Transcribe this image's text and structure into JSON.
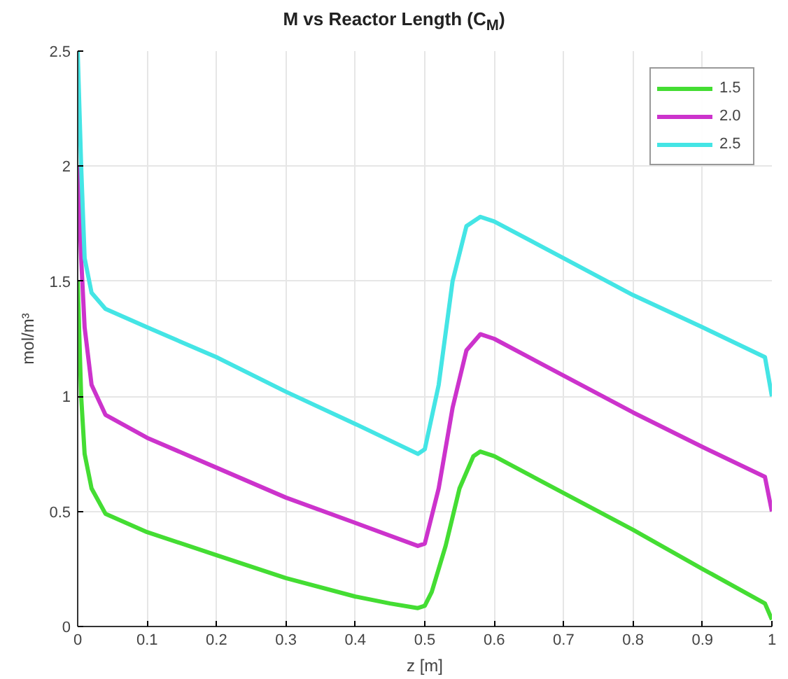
{
  "chart_data": {
    "type": "line",
    "title": "M vs Reactor Length (C$_{M}$)",
    "xlabel": "z [m]",
    "ylabel": "mol/m³",
    "xlim": [
      0,
      1
    ],
    "ylim": [
      0,
      2.5
    ],
    "xticks": [
      0,
      0.1,
      0.2,
      0.3,
      0.4,
      0.5,
      0.6,
      0.7,
      0.8,
      0.9,
      1
    ],
    "yticks": [
      0,
      0.5,
      1,
      1.5,
      2,
      2.5
    ],
    "grid": true,
    "legend": "top right",
    "line_style": "solid",
    "series": [
      {
        "name": "1.5",
        "color": "#44dd33",
        "x": [
          0,
          0.005,
          0.01,
          0.02,
          0.04,
          0.1,
          0.2,
          0.3,
          0.4,
          0.45,
          0.49,
          0.5,
          0.51,
          0.53,
          0.55,
          0.57,
          0.58,
          0.6,
          0.7,
          0.8,
          0.9,
          0.99,
          1.0
        ],
        "values": [
          1.5,
          1.0,
          0.75,
          0.6,
          0.49,
          0.41,
          0.31,
          0.21,
          0.13,
          0.1,
          0.08,
          0.09,
          0.15,
          0.35,
          0.6,
          0.74,
          0.76,
          0.74,
          0.58,
          0.42,
          0.25,
          0.1,
          0.03
        ]
      },
      {
        "name": "2.0",
        "color": "#cc33cc",
        "x": [
          0,
          0.005,
          0.01,
          0.02,
          0.04,
          0.1,
          0.2,
          0.3,
          0.4,
          0.49,
          0.5,
          0.52,
          0.54,
          0.56,
          0.58,
          0.6,
          0.7,
          0.8,
          0.9,
          0.99,
          1.0
        ],
        "values": [
          2.0,
          1.6,
          1.3,
          1.05,
          0.92,
          0.82,
          0.69,
          0.56,
          0.45,
          0.35,
          0.36,
          0.6,
          0.95,
          1.2,
          1.27,
          1.25,
          1.09,
          0.93,
          0.78,
          0.65,
          0.5
        ]
      },
      {
        "name": "2.5",
        "color": "#44e5e5",
        "x": [
          0,
          0.005,
          0.01,
          0.02,
          0.04,
          0.1,
          0.2,
          0.3,
          0.4,
          0.49,
          0.5,
          0.52,
          0.54,
          0.56,
          0.58,
          0.6,
          0.7,
          0.8,
          0.9,
          0.99,
          1.0
        ],
        "values": [
          2.5,
          2.0,
          1.6,
          1.45,
          1.38,
          1.3,
          1.17,
          1.02,
          0.88,
          0.75,
          0.77,
          1.05,
          1.5,
          1.74,
          1.78,
          1.76,
          1.6,
          1.44,
          1.3,
          1.17,
          1.0
        ]
      }
    ]
  }
}
